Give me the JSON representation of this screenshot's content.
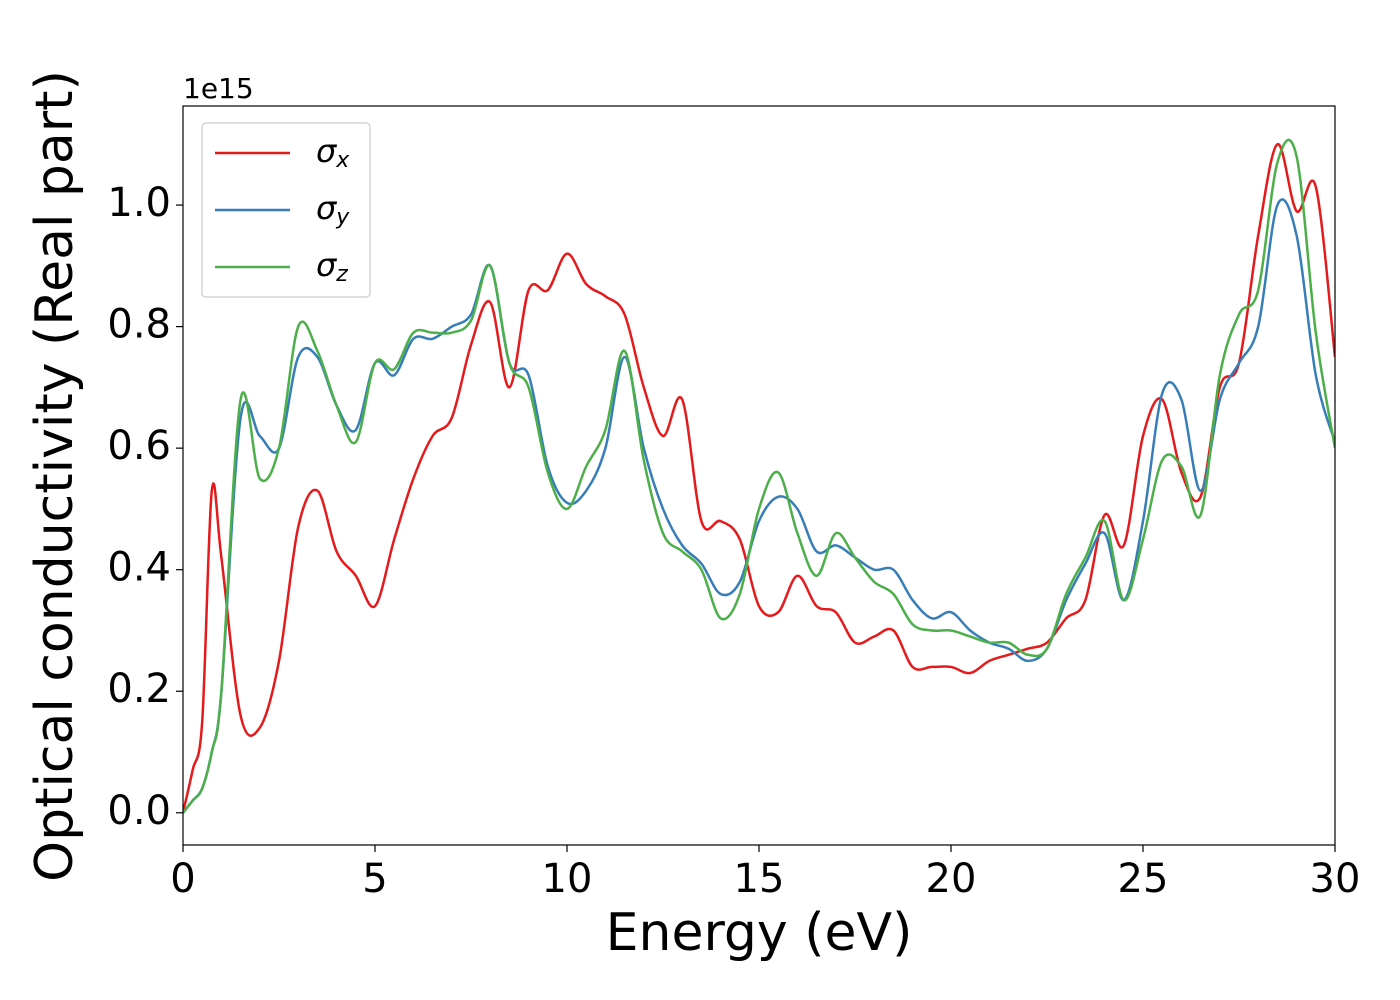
{
  "chart_data": {
    "type": "line",
    "xlabel": "Energy (eV)",
    "ylabel": "Optical conductivity (Real part)",
    "y_offset_text": "1e15",
    "xlim": [
      0,
      30
    ],
    "ylim": [
      -0.053,
      1.163
    ],
    "xticks": [
      0,
      5,
      10,
      15,
      20,
      25,
      30
    ],
    "yticks": [
      {
        "value": 0,
        "label": "0.0"
      },
      0.2,
      0.4,
      0.6,
      0.8,
      {
        "value": 1,
        "label": "1.0"
      }
    ],
    "grid": false,
    "legend": "upper left",
    "x": [
      0,
      0.25,
      0.5,
      0.75,
      1,
      1.5,
      2,
      2.5,
      3,
      3.5,
      4,
      4.5,
      5,
      5.5,
      6,
      6.5,
      7,
      7.5,
      8,
      8.5,
      9,
      9.5,
      10,
      10.5,
      11,
      11.5,
      12,
      12.5,
      13,
      13.5,
      14,
      14.5,
      15,
      15.5,
      16,
      16.5,
      17,
      17.5,
      18,
      18.5,
      19,
      19.5,
      20,
      20.5,
      21,
      21.5,
      22,
      22.5,
      23,
      23.5,
      24,
      24.5,
      25,
      25.5,
      26,
      26.5,
      27,
      27.5,
      28,
      28.5,
      29,
      29.5,
      30
    ],
    "series": [
      {
        "name": "σx",
        "color": "#e41a1c",
        "values": [
          0,
          0.07,
          0.15,
          0.53,
          0.42,
          0.16,
          0.14,
          0.25,
          0.47,
          0.53,
          0.43,
          0.39,
          0.34,
          0.45,
          0.55,
          0.62,
          0.65,
          0.77,
          0.84,
          0.7,
          0.86,
          0.86,
          0.92,
          0.87,
          0.85,
          0.82,
          0.7,
          0.62,
          0.68,
          0.48,
          0.48,
          0.45,
          0.34,
          0.33,
          0.39,
          0.34,
          0.33,
          0.28,
          0.29,
          0.3,
          0.24,
          0.24,
          0.24,
          0.23,
          0.25,
          0.26,
          0.27,
          0.28,
          0.32,
          0.35,
          0.49,
          0.44,
          0.62,
          0.68,
          0.56,
          0.52,
          0.7,
          0.74,
          0.95,
          1.1,
          0.99,
          1.03,
          0.75
        ]
      },
      {
        "name": "σy",
        "color": "#377eb8",
        "values": [
          0,
          0.02,
          0.04,
          0.1,
          0.2,
          0.65,
          0.62,
          0.6,
          0.75,
          0.75,
          0.67,
          0.63,
          0.74,
          0.72,
          0.78,
          0.78,
          0.8,
          0.82,
          0.9,
          0.74,
          0.72,
          0.57,
          0.51,
          0.53,
          0.6,
          0.75,
          0.6,
          0.5,
          0.44,
          0.41,
          0.36,
          0.38,
          0.48,
          0.52,
          0.5,
          0.43,
          0.44,
          0.42,
          0.4,
          0.4,
          0.35,
          0.32,
          0.33,
          0.3,
          0.28,
          0.27,
          0.25,
          0.27,
          0.35,
          0.41,
          0.46,
          0.35,
          0.48,
          0.69,
          0.68,
          0.53,
          0.68,
          0.74,
          0.8,
          1.0,
          0.95,
          0.72,
          0.61
        ]
      },
      {
        "name": "σz",
        "color": "#4daf4a",
        "values": [
          0,
          0.02,
          0.04,
          0.1,
          0.2,
          0.68,
          0.55,
          0.6,
          0.8,
          0.76,
          0.67,
          0.61,
          0.74,
          0.73,
          0.79,
          0.79,
          0.79,
          0.81,
          0.9,
          0.74,
          0.7,
          0.56,
          0.5,
          0.57,
          0.63,
          0.76,
          0.58,
          0.46,
          0.43,
          0.4,
          0.32,
          0.36,
          0.5,
          0.56,
          0.46,
          0.39,
          0.46,
          0.42,
          0.38,
          0.36,
          0.31,
          0.3,
          0.3,
          0.29,
          0.28,
          0.28,
          0.26,
          0.27,
          0.36,
          0.42,
          0.48,
          0.35,
          0.45,
          0.58,
          0.57,
          0.49,
          0.72,
          0.82,
          0.86,
          1.07,
          1.08,
          0.79,
          0.6
        ]
      }
    ]
  }
}
